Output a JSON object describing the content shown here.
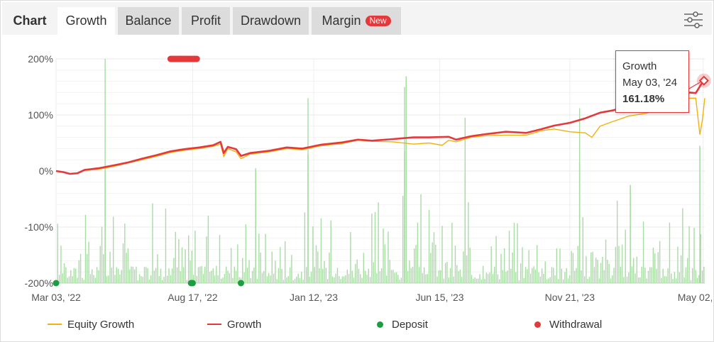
{
  "tabs": {
    "header": "Chart",
    "items": [
      {
        "label": "Growth",
        "active": true
      },
      {
        "label": "Balance"
      },
      {
        "label": "Profit"
      },
      {
        "label": "Drawdown"
      },
      {
        "label": "Margin",
        "badge": "New"
      }
    ],
    "settings_icon": "sliders-icon"
  },
  "tooltip": {
    "series": "Growth",
    "date": "May 03, '24",
    "value": "161.18%"
  },
  "legend": [
    {
      "label": "Equity Growth",
      "color": "#f0b20f",
      "kind": "line"
    },
    {
      "label": "Growth",
      "color": "#e5383b",
      "kind": "line"
    },
    {
      "label": "Deposit",
      "color": "#1a9e3f",
      "kind": "dot"
    },
    {
      "label": "Withdrawal",
      "color": "#e5383b",
      "kind": "dot"
    }
  ],
  "chart_data": {
    "type": "line",
    "yticks": [
      200,
      100,
      0,
      -100,
      -200
    ],
    "ytick_labels": [
      "200%",
      "100%",
      "0%",
      "-100%",
      "-200%"
    ],
    "ylim": [
      -200,
      200
    ],
    "xlim": [
      0,
      793
    ],
    "xticks": [
      {
        "label": "Mar 03, '22",
        "day": 0
      },
      {
        "label": "Aug 17, '22",
        "day": 167
      },
      {
        "label": "Jan 12, '23",
        "day": 315
      },
      {
        "label": "Jun 15, '23",
        "day": 469
      },
      {
        "label": "Nov 21, '23",
        "day": 628
      },
      {
        "label": "May 02, '24",
        "day": 791
      }
    ],
    "colors": {
      "growth": "#e5383b",
      "equity": "#f0b20f",
      "bars": "#a8dca4",
      "deposit": "#1a9e3f",
      "withdrawal": "#e5383b",
      "grid": "#e8e8e8"
    },
    "series": [
      {
        "name": "Growth",
        "x": [
          0,
          9,
          17,
          26,
          35,
          52,
          70,
          87,
          105,
          122,
          140,
          157,
          175,
          192,
          201,
          205,
          210,
          220,
          226,
          237,
          260,
          282,
          301,
          324,
          350,
          369,
          386,
          412,
          437,
          456,
          480,
          489,
          507,
          526,
          550,
          575,
          594,
          609,
          628,
          647,
          665,
          680,
          700,
          722,
          744,
          762,
          775,
          782,
          790,
          792
        ],
        "y": [
          0,
          -2,
          -5,
          -4,
          2,
          5,
          10,
          15,
          22,
          28,
          35,
          39,
          42,
          46,
          52,
          32,
          43,
          39,
          27,
          32,
          36,
          42,
          40,
          47,
          51,
          56,
          54,
          57,
          60,
          60,
          61,
          56,
          62,
          66,
          70,
          68,
          75,
          81,
          86,
          94,
          104,
          108,
          115,
          118,
          125,
          135,
          140,
          139,
          158,
          161.18
        ]
      },
      {
        "name": "Equity Growth",
        "x": [
          0,
          9,
          17,
          26,
          35,
          52,
          70,
          87,
          105,
          122,
          140,
          157,
          175,
          192,
          201,
          205,
          210,
          220,
          226,
          237,
          260,
          282,
          301,
          324,
          350,
          369,
          386,
          412,
          437,
          456,
          472,
          480,
          489,
          507,
          526,
          550,
          575,
          594,
          609,
          628,
          647,
          655,
          665,
          680,
          700,
          722,
          744,
          762,
          775,
          782,
          787,
          790,
          793
        ],
        "y": [
          0,
          -2,
          -5,
          -4,
          1,
          3,
          8,
          14,
          20,
          26,
          33,
          37,
          40,
          44,
          48,
          26,
          40,
          34,
          22,
          30,
          34,
          40,
          38,
          45,
          49,
          55,
          53,
          52,
          48,
          50,
          46,
          55,
          52,
          60,
          63,
          64,
          64,
          72,
          75,
          70,
          68,
          60,
          80,
          88,
          98,
          103,
          115,
          128,
          130,
          130,
          65,
          90,
          130
        ]
      }
    ],
    "deposits_days": [
      0,
      165,
      167,
      226
    ],
    "withdrawals_days": [
      140,
      142,
      144,
      146,
      148,
      150,
      152,
      154,
      156,
      158,
      160,
      162,
      164,
      166,
      168,
      170,
      172
    ],
    "withdrawals_level": 200
  }
}
